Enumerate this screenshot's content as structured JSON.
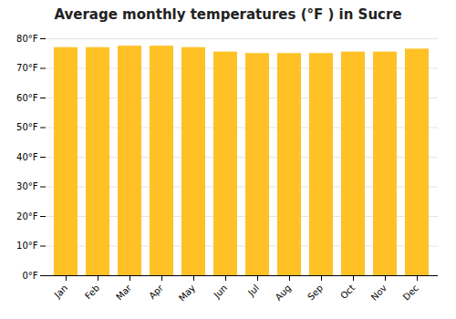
{
  "chart_data": {
    "type": "bar",
    "title": "Average monthly temperatures (°F ) in Sucre",
    "categories": [
      "Jan",
      "Feb",
      "Mar",
      "Apr",
      "May",
      "Jun",
      "Jul",
      "Aug",
      "Sep",
      "Oct",
      "Nov",
      "Dec"
    ],
    "values": [
      77,
      77,
      77.5,
      77.5,
      77,
      75.5,
      75,
      75,
      75,
      75.5,
      75.5,
      76.5
    ],
    "color": "#FFC125",
    "ylim": [
      0,
      80
    ],
    "yticks": [
      {
        "value": 0,
        "label": "0°F"
      },
      {
        "value": 10,
        "label": "10°F"
      },
      {
        "value": 20,
        "label": "20°F"
      },
      {
        "value": 30,
        "label": "30°F"
      },
      {
        "value": 40,
        "label": "40°F"
      },
      {
        "value": 50,
        "label": "50°F"
      },
      {
        "value": 60,
        "label": "60°F"
      },
      {
        "value": 70,
        "label": "70°F"
      },
      {
        "value": 80,
        "label": "80°F"
      }
    ],
    "grid": true
  }
}
